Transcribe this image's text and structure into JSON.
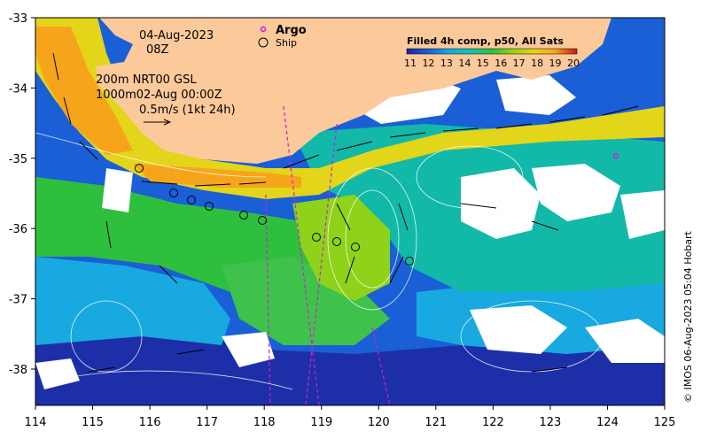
{
  "map": {
    "date": "04-Aug-2023",
    "hour": "08Z",
    "legend_argo": "Argo",
    "legend_ship": "Ship",
    "depth_line_1": "200m  NRT00 GSL",
    "depth_line_2": "1000m02-Aug 00:00Z",
    "scale_label": "0.5m/s (1kt 24h)",
    "sst_title": "Filled 4h comp, p50, All Sats",
    "colorbar_ticks": [
      "11",
      "12",
      "13",
      "14",
      "15",
      "16",
      "17",
      "18",
      "19",
      "20"
    ],
    "colorbar_colors": [
      "#1d1f9e",
      "#1a5fd6",
      "#17a9e0",
      "#13c3b5",
      "#2fbf3e",
      "#8fd21a",
      "#e3d51a",
      "#f6a51b",
      "#e8611a",
      "#c31d1d"
    ],
    "x_ticks": [
      "114",
      "115",
      "116",
      "117",
      "118",
      "119",
      "120",
      "121",
      "122",
      "123",
      "124",
      "125"
    ],
    "y_ticks": [
      "-33",
      "-34",
      "-35",
      "-36",
      "-37",
      "-38"
    ],
    "credit": "© IMOS 06-Aug-2023 05:04 Hobart",
    "colors": {
      "land": "#fcc99a",
      "argo_marker": "#d01fd0",
      "ship_track": "#d01fd0"
    }
  }
}
